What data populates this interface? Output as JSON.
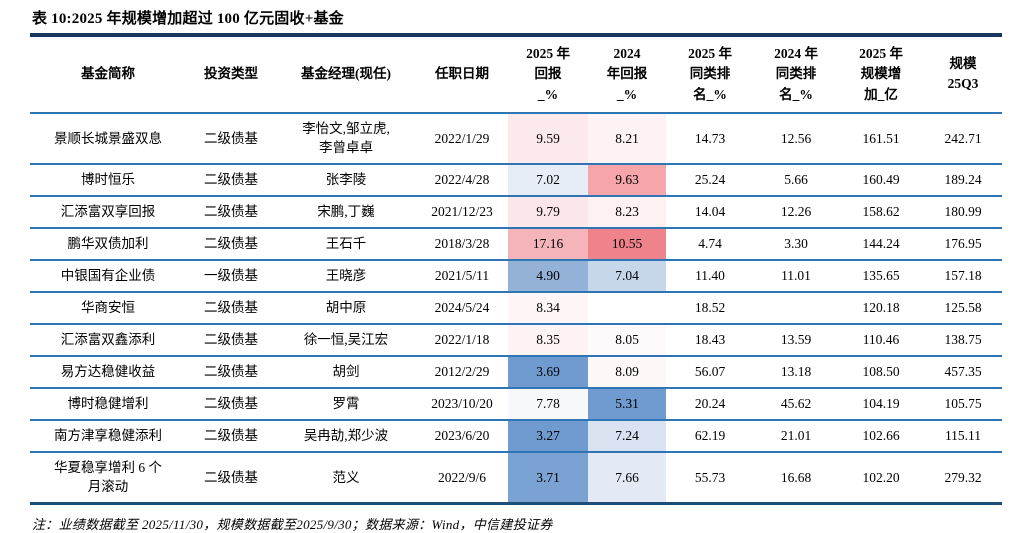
{
  "title": "表 10:2025 年规模增加超过 100 亿元固收+基金",
  "note": "注：业绩数据截至 2025/11/30，规模数据截至2025/9/30；数据来源：Wind，中信建投证券",
  "colors": {
    "title_rule_dark_navy": "#17375E",
    "row_rule_blue": "#2E75B6",
    "table_bottom_navy": "#1F4E79",
    "heat_red_strong": "#EF838B",
    "heat_red_mid": "#F5B4BA",
    "heat_blue_strong": "#6F9BD1",
    "heat_blue_mid": "#94B2D8"
  },
  "table": {
    "columns": [
      {
        "key": "name",
        "label": "基金简称"
      },
      {
        "key": "type",
        "label": "投资类型"
      },
      {
        "key": "manager",
        "label": "基金经理(现任)"
      },
      {
        "key": "date",
        "label": "任职日期"
      },
      {
        "key": "r2025",
        "label": "2025 年\n回报\n_%"
      },
      {
        "key": "r2024",
        "label": "2024\n年回报\n_%"
      },
      {
        "key": "rank2025",
        "label": "2025 年\n同类排\n名_%"
      },
      {
        "key": "rank2024",
        "label": "2024 年\n同类排\n名_%"
      },
      {
        "key": "scale_inc",
        "label": "2025 年\n规模增\n加_亿"
      },
      {
        "key": "scale_25q3",
        "label": "规模\n25Q3"
      }
    ],
    "rows": [
      {
        "cells": {
          "name": "景顺长城景盛双息",
          "type": "二级债基",
          "manager": "李怡文,邹立虎,\n李曾卓卓",
          "date": "2022/1/29",
          "r2025": "9.59",
          "r2024": "8.21",
          "rank2025": "14.73",
          "rank2024": "12.56",
          "scale_inc": "161.51",
          "scale_25q3": "242.71"
        },
        "bg": {
          "r2025": "#FBE9EC",
          "r2024": "#FDF3F4"
        }
      },
      {
        "cells": {
          "name": "博时恒乐",
          "type": "二级债基",
          "manager": "张李陵",
          "date": "2022/4/28",
          "r2025": "7.02",
          "r2024": "9.63",
          "rank2025": "25.24",
          "rank2024": "5.66",
          "scale_inc": "160.49",
          "scale_25q3": "189.24"
        },
        "bg": {
          "r2025": "#E7EDF7",
          "r2024": "#F6A5AB"
        }
      },
      {
        "cells": {
          "name": "汇添富双享回报",
          "type": "二级债基",
          "manager": "宋鹏,丁巍",
          "date": "2021/12/23",
          "r2025": "9.79",
          "r2024": "8.23",
          "rank2025": "14.04",
          "rank2024": "12.26",
          "scale_inc": "158.62",
          "scale_25q3": "180.99"
        },
        "bg": {
          "r2025": "#FBE7EA",
          "r2024": "#FDF1F2"
        }
      },
      {
        "cells": {
          "name": "鹏华双债加利",
          "type": "二级债基",
          "manager": "王石千",
          "date": "2018/3/28",
          "r2025": "17.16",
          "r2024": "10.55",
          "rank2025": "4.74",
          "rank2024": "3.30",
          "scale_inc": "144.24",
          "scale_25q3": "176.95"
        },
        "bg": {
          "r2025": "#F5B4BA",
          "r2024": "#EF838B"
        }
      },
      {
        "cells": {
          "name": "中银国有企业债",
          "type": "一级债基",
          "manager": "王晓彦",
          "date": "2021/5/11",
          "r2025": "4.90",
          "r2024": "7.04",
          "rank2025": "11.40",
          "rank2024": "11.01",
          "scale_inc": "135.65",
          "scale_25q3": "157.18"
        },
        "bg": {
          "r2025": "#94B2D8",
          "r2024": "#C6D7EC"
        }
      },
      {
        "cells": {
          "name": "华商安恒",
          "type": "二级债基",
          "manager": "胡中原",
          "date": "2024/5/24",
          "r2025": "8.34",
          "r2024": "",
          "rank2025": "18.52",
          "rank2024": "",
          "scale_inc": "120.18",
          "scale_25q3": "125.58"
        },
        "bg": {
          "r2025": "#FDF5F6"
        }
      },
      {
        "cells": {
          "name": "汇添富双鑫添利",
          "type": "二级债基",
          "manager": "徐一恒,吴江宏",
          "date": "2022/1/18",
          "r2025": "8.35",
          "r2024": "8.05",
          "rank2025": "18.43",
          "rank2024": "13.59",
          "scale_inc": "110.46",
          "scale_25q3": "138.75"
        },
        "bg": {
          "r2025": "#FDF3F5",
          "r2024": "#FEFAFB"
        }
      },
      {
        "cells": {
          "name": "易方达稳健收益",
          "type": "二级债基",
          "manager": "胡剑",
          "date": "2012/2/29",
          "r2025": "3.69",
          "r2024": "8.09",
          "rank2025": "56.07",
          "rank2024": "13.18",
          "scale_inc": "108.50",
          "scale_25q3": "457.35"
        },
        "bg": {
          "r2025": "#6F9BD1",
          "r2024": "#FDF7F8"
        }
      },
      {
        "cells": {
          "name": "博时稳健增利",
          "type": "二级债基",
          "manager": "罗霄",
          "date": "2023/10/20",
          "r2025": "7.78",
          "r2024": "5.31",
          "rank2025": "20.24",
          "rank2024": "45.62",
          "scale_inc": "104.19",
          "scale_25q3": "105.75"
        },
        "bg": {
          "r2025": "#F7F8FB",
          "r2024": "#6F9BD1"
        }
      },
      {
        "cells": {
          "name": "南方津享稳健添利",
          "type": "二级债基",
          "manager": "吴冉劼,郑少波",
          "date": "2023/6/20",
          "r2025": "3.27",
          "r2024": "7.24",
          "rank2025": "62.19",
          "rank2024": "21.01",
          "scale_inc": "102.66",
          "scale_25q3": "115.11"
        },
        "bg": {
          "r2025": "#6F9BD1",
          "r2024": "#D8E2F1"
        }
      },
      {
        "cells": {
          "name": "华夏稳享增利 6 个\n月滚动",
          "type": "二级债基",
          "manager": "范义",
          "date": "2022/9/6",
          "r2025": "3.71",
          "r2024": "7.66",
          "rank2025": "55.73",
          "rank2024": "16.68",
          "scale_inc": "102.20",
          "scale_25q3": "279.32"
        },
        "bg": {
          "r2025": "#7AA3D4",
          "r2024": "#E3EAF5"
        }
      }
    ]
  }
}
